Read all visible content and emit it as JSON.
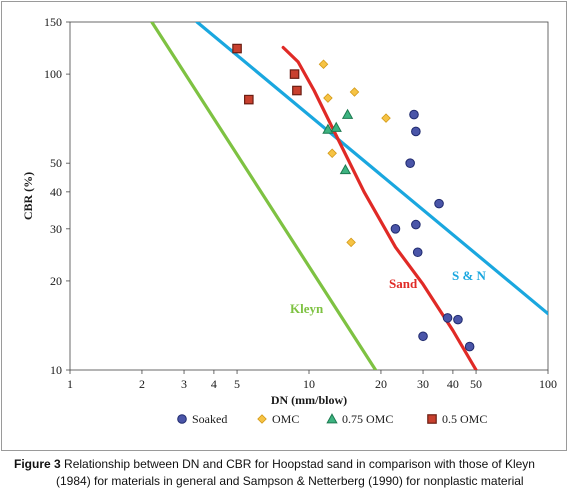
{
  "chart_data": {
    "type": "scatter",
    "xlabel": "DN (mm/blow)",
    "ylabel": "CBR (%)",
    "xscale": "log",
    "yscale": "log",
    "xlim": [
      1,
      100
    ],
    "ylim": [
      10,
      150
    ],
    "x_ticks": [
      1,
      2,
      3,
      4,
      5,
      10,
      20,
      30,
      40,
      50,
      100
    ],
    "x_tick_labels": [
      "1",
      "2",
      "3",
      "4",
      "5",
      "10",
      "20",
      "30",
      "40",
      "50",
      "100"
    ],
    "y_ticks": [
      10,
      20,
      30,
      40,
      50,
      100,
      150
    ],
    "y_tick_labels": [
      "10",
      "20",
      "30",
      "40",
      "50",
      "100",
      "150"
    ],
    "grid": "none",
    "legend_position": "bottom",
    "series": [
      {
        "name": "Soaked",
        "marker": "circle",
        "color": "#4a55a8",
        "edge": "#1f2a6e",
        "points": [
          [
            27.5,
            73
          ],
          [
            28,
            64
          ],
          [
            26.5,
            50
          ],
          [
            28,
            31
          ],
          [
            28.5,
            25
          ],
          [
            35,
            36.5
          ],
          [
            23,
            30
          ],
          [
            38,
            15
          ],
          [
            42,
            14.8
          ],
          [
            47,
            12
          ],
          [
            30,
            13
          ]
        ]
      },
      {
        "name": "OMC",
        "marker": "diamond",
        "color": "#f6c344",
        "edge": "#d49a18",
        "points": [
          [
            11.5,
            108
          ],
          [
            15.5,
            87
          ],
          [
            12,
            83
          ],
          [
            21,
            71
          ],
          [
            12.5,
            54
          ],
          [
            15,
            27
          ]
        ]
      },
      {
        "name": "0.75 OMC",
        "marker": "triangle",
        "color": "#3db380",
        "edge": "#1c7a50",
        "points": [
          [
            14.5,
            73
          ],
          [
            12,
            65
          ],
          [
            13,
            66
          ],
          [
            14.2,
            47.5
          ]
        ]
      },
      {
        "name": "0.5 OMC",
        "marker": "square",
        "color": "#c8402e",
        "edge": "#6b1d12",
        "points": [
          [
            5,
            122
          ],
          [
            5.6,
            82
          ],
          [
            8.7,
            100
          ],
          [
            8.9,
            88
          ]
        ]
      }
    ],
    "lines": [
      {
        "label": "Kleyn",
        "color": "#7ec242",
        "points": [
          [
            2.2,
            150
          ],
          [
            19,
            10
          ]
        ]
      },
      {
        "label": "S & N",
        "color": "#1aa7df",
        "points": [
          [
            3.4,
            150
          ],
          [
            100,
            15.5
          ]
        ]
      },
      {
        "label": "Sand",
        "color": "#e02a26",
        "points": [
          [
            7.8,
            123
          ],
          [
            9,
            110
          ],
          [
            10.5,
            88
          ],
          [
            13,
            62
          ],
          [
            17,
            40
          ],
          [
            23,
            26
          ],
          [
            30,
            19.5
          ],
          [
            40,
            13.6
          ],
          [
            50,
            10
          ]
        ]
      }
    ],
    "line_label_text": {
      "kleyn": "Kleyn",
      "sn": "S & N",
      "sand": "Sand"
    }
  },
  "caption": {
    "figure_number": "Figure 3",
    "text_line1": "Relationship between DN and CBR for Hoopstad sand in comparison with those of Kleyn",
    "text_line2": "(1984) for materials in general and Sampson & Netterberg (1990) for nonplastic material"
  }
}
